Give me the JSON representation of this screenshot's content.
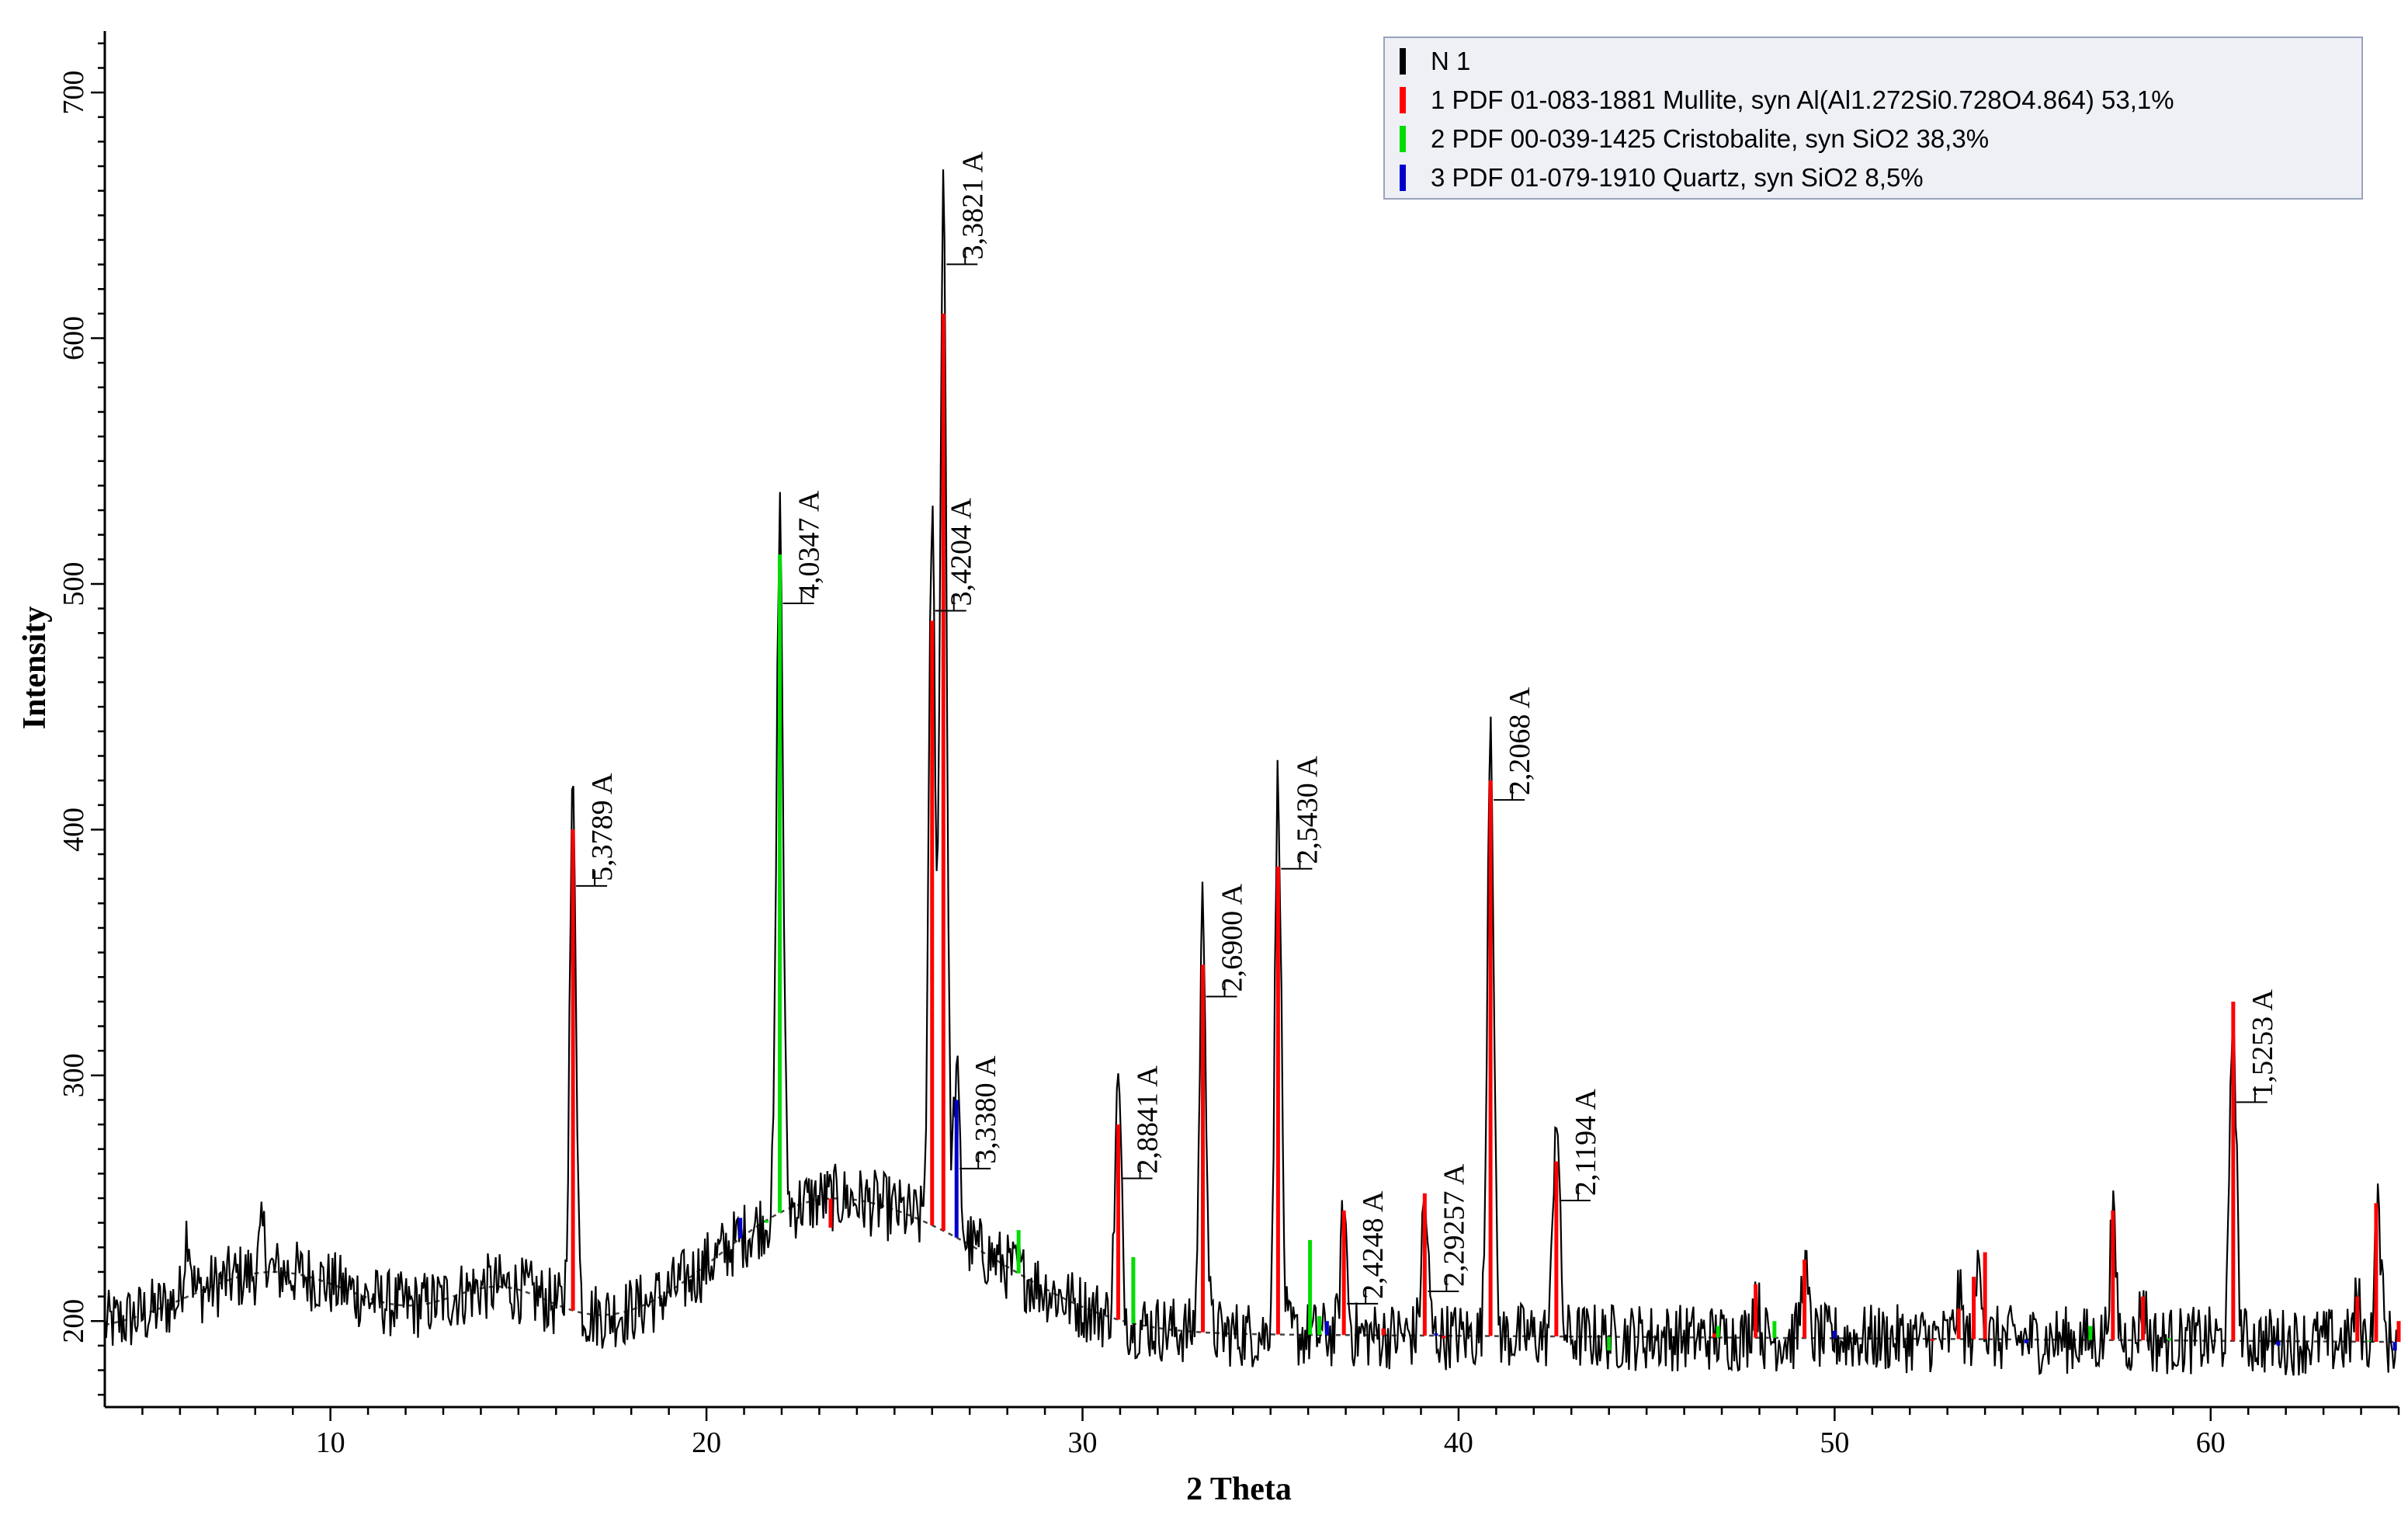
{
  "chart_data": {
    "type": "line",
    "title": "",
    "xlabel": "2 Theta",
    "ylabel": "Intensity",
    "xlim": [
      4,
      65
    ],
    "ylim": [
      165,
      725
    ],
    "x_ticks": [
      10,
      20,
      30,
      40,
      50,
      60
    ],
    "x_tick_labels": [
      "10",
      "20",
      "30",
      "40",
      "50",
      "60"
    ],
    "y_ticks": [
      200,
      300,
      400,
      500,
      600,
      700
    ],
    "y_tick_labels": [
      "200",
      "300",
      "400",
      "500",
      "600",
      "700"
    ],
    "grid": false,
    "legend_position": "top-right",
    "legend": [
      {
        "label": "N 1",
        "color": "#000000"
      },
      {
        "label": "1 PDF 01-083-1881 Mullite, syn Al(Al1.272Si0.728O4.864) 53,1%",
        "color": "#ff0000"
      },
      {
        "label": "2 PDF 00-039-1425 Cristobalite, syn SiO2 38,3%",
        "color": "#00dd00"
      },
      {
        "label": "3 PDF 01-079-1910 Quartz, syn SiO2 8,5%",
        "color": "#0000cc"
      }
    ],
    "peaks": [
      {
        "x": 16.45,
        "y": 415,
        "label": "5,3789 A"
      },
      {
        "x": 21.95,
        "y": 530,
        "label": "4,0347 A"
      },
      {
        "x": 26.0,
        "y": 527,
        "label": "3,4204 A"
      },
      {
        "x": 26.3,
        "y": 668,
        "label": "3,3821 A"
      },
      {
        "x": 26.65,
        "y": 300,
        "label": "3,3380 A"
      },
      {
        "x": 30.95,
        "y": 296,
        "label": "2,8841 A"
      },
      {
        "x": 33.2,
        "y": 370,
        "label": "2,6900 A"
      },
      {
        "x": 35.2,
        "y": 422,
        "label": "2,5430 A"
      },
      {
        "x": 36.95,
        "y": 245,
        "label": "2,4248 A"
      },
      {
        "x": 39.1,
        "y": 250,
        "label": "2,29257 A"
      },
      {
        "x": 40.85,
        "y": 450,
        "label": "2,2068 A"
      },
      {
        "x": 42.6,
        "y": 287,
        "label": "2,1194 A"
      },
      {
        "x": 60.6,
        "y": 327,
        "label": "1,5253 A"
      }
    ],
    "series": [
      {
        "name": "1 PDF 01-083-1881 Mullite",
        "color": "#ff0000",
        "x": [
          16.45,
          23.3,
          26.0,
          26.3,
          30.95,
          33.2,
          35.2,
          36.95,
          39.1,
          40.85,
          42.6,
          47.9,
          49.2,
          53.3,
          53.7,
          54.0,
          57.4,
          58.2,
          60.6,
          63.9,
          64.4,
          65.0,
          38.0,
          39.6,
          46.8,
          52.6
        ],
        "y": [
          400,
          238,
          485,
          610,
          280,
          345,
          385,
          245,
          252,
          420,
          265,
          215,
          225,
          205,
          218,
          228,
          245,
          210,
          330,
          210,
          248,
          200,
          197,
          193,
          195,
          192
        ]
      },
      {
        "name": "2 PDF 00-039-1425 Cristobalite",
        "color": "#00dd00",
        "x": [
          21.95,
          21.6,
          28.3,
          31.35,
          36.05,
          36.3,
          44.0,
          46.9,
          48.4,
          56.8,
          58.9,
          59.7,
          64.2
        ],
        "y": [
          512,
          240,
          237,
          226,
          233,
          202,
          188,
          198,
          200,
          198,
          193,
          192,
          192
        ]
      },
      {
        "name": "3 PDF 01-079-1910 Quartz",
        "color": "#0000cc",
        "x": [
          20.9,
          26.65,
          36.5,
          39.4,
          40.2,
          50.0,
          55.1,
          59.8,
          61.8,
          64.9
        ],
        "y": [
          242,
          290,
          200,
          195,
          194,
          196,
          191,
          192,
          190,
          188
        ]
      }
    ]
  }
}
